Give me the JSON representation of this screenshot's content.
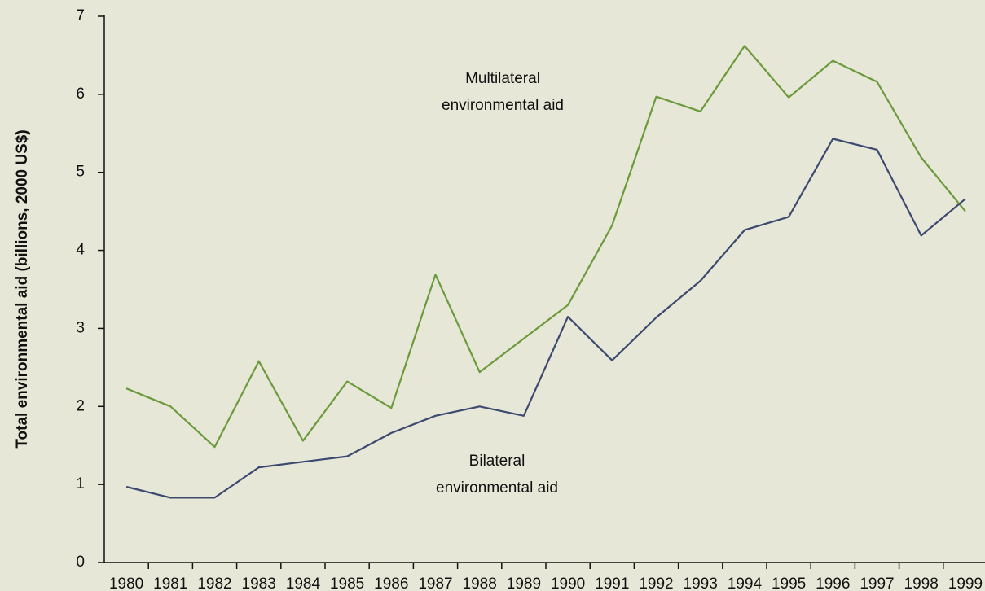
{
  "chart_data": {
    "type": "line",
    "ylabel": "Total environmental aid (billions, 2000 US$)",
    "categories": [
      "1980",
      "1981",
      "1982",
      "1983",
      "1984",
      "1985",
      "1986",
      "1987",
      "1988",
      "1989",
      "1990",
      "1991",
      "1992",
      "1993",
      "1994",
      "1995",
      "1996",
      "1997",
      "1998",
      "1999"
    ],
    "series": [
      {
        "name": "Multilateral environmental aid",
        "color": "#6a9a3a",
        "values": [
          2.23,
          2.0,
          1.48,
          2.58,
          1.56,
          2.32,
          1.98,
          3.69,
          2.44,
          2.87,
          3.3,
          4.32,
          5.97,
          5.78,
          6.62,
          5.96,
          6.43,
          6.16,
          5.19,
          4.5
        ]
      },
      {
        "name": "Bilateral environmental aid",
        "color": "#3c4a70",
        "values": [
          0.97,
          0.83,
          0.83,
          1.22,
          1.29,
          1.36,
          1.66,
          1.88,
          2.0,
          1.88,
          3.15,
          2.59,
          3.14,
          3.61,
          4.26,
          4.43,
          5.43,
          5.29,
          4.19,
          4.66
        ]
      }
    ],
    "ylim": [
      0,
      7
    ],
    "yticks": [
      0,
      1,
      2,
      3,
      4,
      5,
      6,
      7
    ],
    "grid": false
  }
}
